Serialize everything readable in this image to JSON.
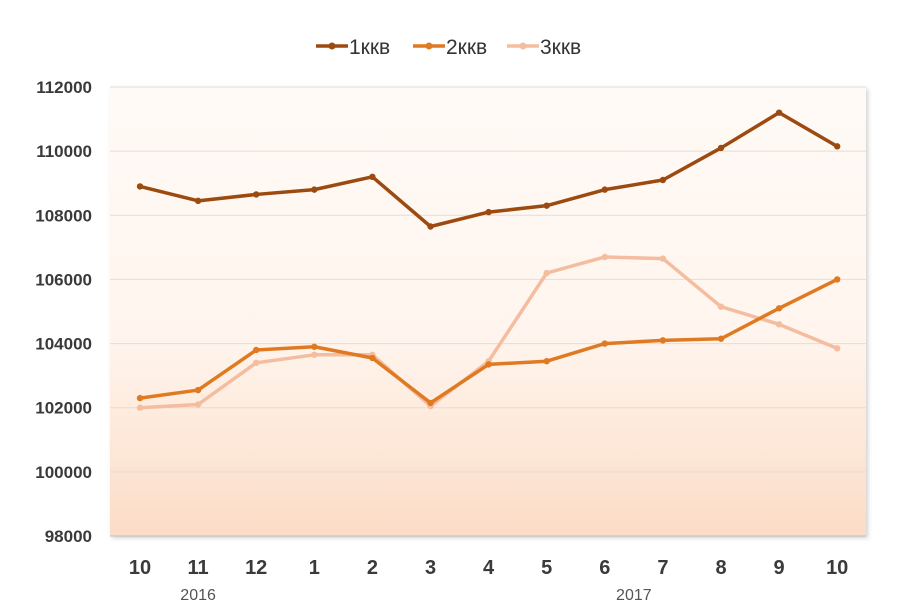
{
  "chart_data": {
    "type": "line",
    "categories": [
      "10",
      "11",
      "12",
      "1",
      "2",
      "3",
      "4",
      "5",
      "6",
      "7",
      "8",
      "9",
      "10"
    ],
    "year_labels": [
      {
        "text": "2016",
        "at_index": 1
      },
      {
        "text": "2017",
        "at_index": 8.5
      }
    ],
    "ylim": [
      98000,
      112000
    ],
    "yticks": [
      98000,
      100000,
      102000,
      104000,
      106000,
      108000,
      110000,
      112000
    ],
    "grid": true,
    "legend_position": "top",
    "series": [
      {
        "name": "1ккв",
        "color": "#9c4a10",
        "values": [
          108900,
          108450,
          108650,
          108800,
          109200,
          107650,
          108100,
          108300,
          108800,
          109100,
          110100,
          111200,
          110150
        ]
      },
      {
        "name": "2ккв",
        "color": "#e07a22",
        "values": [
          102300,
          102550,
          103800,
          103900,
          103550,
          102150,
          103350,
          103450,
          104000,
          104100,
          104150,
          105100,
          106000
        ]
      },
      {
        "name": "3ккв",
        "color": "#f5bda0",
        "values": [
          102000,
          102100,
          103400,
          103650,
          103650,
          102050,
          103450,
          106200,
          106700,
          106650,
          105150,
          104600,
          103850
        ]
      }
    ]
  }
}
